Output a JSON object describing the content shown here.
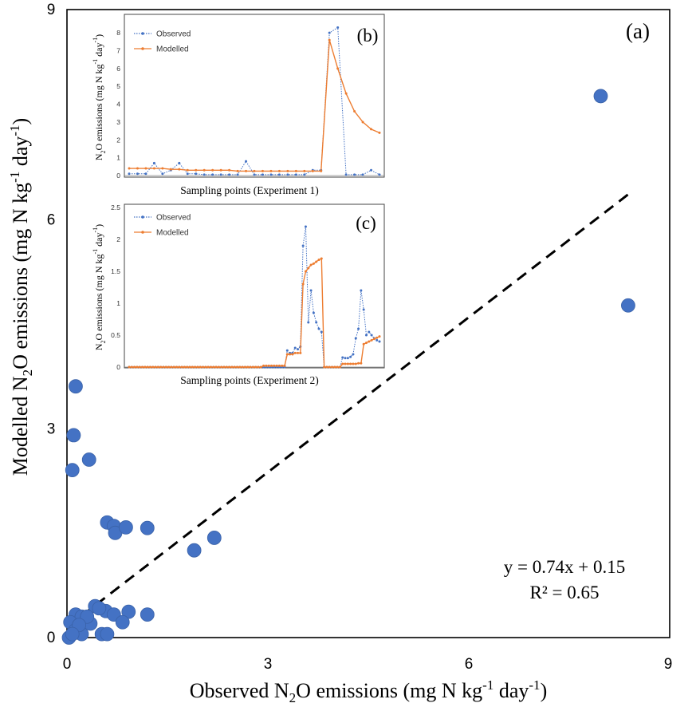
{
  "chart_data": [
    {
      "panel": "a",
      "type": "scatter",
      "panel_label": "(a)",
      "xlabel": "Observed N2O emissions (mg N kg-1 day-1)",
      "ylabel": "Modelled N2O emissions (mg N kg-1 day-1)",
      "xlim": [
        0,
        9
      ],
      "ylim": [
        0,
        9
      ],
      "xticks": [
        0,
        3,
        6,
        9
      ],
      "yticks": [
        0,
        3,
        6,
        9
      ],
      "points": [
        [
          0.13,
          3.6
        ],
        [
          0.1,
          2.9
        ],
        [
          0.08,
          2.4
        ],
        [
          0.33,
          2.55
        ],
        [
          0.6,
          1.65
        ],
        [
          0.7,
          1.6
        ],
        [
          0.72,
          1.5
        ],
        [
          0.88,
          1.58
        ],
        [
          1.2,
          1.57
        ],
        [
          1.9,
          1.25
        ],
        [
          2.2,
          1.43
        ],
        [
          7.97,
          7.76
        ],
        [
          8.38,
          4.76
        ],
        [
          0.42,
          0.45
        ],
        [
          0.58,
          0.38
        ],
        [
          0.7,
          0.33
        ],
        [
          0.92,
          0.37
        ],
        [
          1.2,
          0.33
        ],
        [
          0.13,
          0.33
        ],
        [
          0.22,
          0.3
        ],
        [
          0.05,
          0.22
        ],
        [
          0.35,
          0.2
        ],
        [
          0.83,
          0.22
        ],
        [
          0.12,
          0.1
        ],
        [
          0.22,
          0.05
        ],
        [
          0.03,
          0.0
        ],
        [
          0.52,
          0.05
        ],
        [
          0.6,
          0.05
        ],
        [
          0.48,
          0.42
        ],
        [
          0.3,
          0.3
        ],
        [
          0.18,
          0.18
        ],
        [
          0.08,
          0.05
        ]
      ],
      "trendline": {
        "slope": 0.74,
        "intercept": 0.15,
        "x_range": [
          0,
          8.4
        ],
        "style": "dashed"
      },
      "equation": "y = 0.74x + 0.15",
      "r_squared": "R² = 0.65",
      "point_color": "#4472C4"
    },
    {
      "panel": "b",
      "type": "line",
      "panel_label": "(b)",
      "xlabel": "Sampling points (Experiment 1)",
      "ylabel": "N2O emissions (mg N kg-1 day-1)",
      "ylim": [
        0,
        8.5
      ],
      "yticks": [
        0,
        1,
        2,
        3,
        4,
        5,
        6,
        7,
        8
      ],
      "series": [
        {
          "name": "Observed",
          "color": "#4472C4",
          "style": "dotted",
          "values": [
            0.1,
            0.1,
            0.1,
            0.7,
            0.1,
            0.3,
            0.7,
            0.1,
            0.1,
            0.05,
            0.05,
            0.05,
            0.05,
            0.05,
            0.8,
            0.05,
            0.05,
            0.05,
            0.05,
            0.05,
            0.05,
            0.05,
            0.3,
            0.3,
            8.0,
            8.3,
            0.05,
            0.05,
            0.05,
            0.3,
            0.05
          ]
        },
        {
          "name": "Modelled",
          "color": "#ED7D31",
          "style": "solid",
          "values": [
            0.4,
            0.4,
            0.4,
            0.4,
            0.4,
            0.35,
            0.35,
            0.3,
            0.3,
            0.3,
            0.3,
            0.3,
            0.3,
            0.25,
            0.25,
            0.25,
            0.25,
            0.25,
            0.25,
            0.25,
            0.25,
            0.25,
            0.25,
            0.25,
            7.6,
            6.0,
            4.6,
            3.6,
            3.0,
            2.6,
            2.4
          ]
        }
      ],
      "legend": "top-left"
    },
    {
      "panel": "c",
      "type": "line",
      "panel_label": "(c)",
      "xlabel": "Sampling points (Experiment 2)",
      "ylabel": "N2O emissions (mg N kg-1 day-1)",
      "ylim": [
        0,
        2.5
      ],
      "yticks": [
        "0",
        "0.5",
        "1",
        "1.5",
        "2",
        "2.5"
      ],
      "series": [
        {
          "name": "Observed",
          "color": "#4472C4",
          "style": "dotted",
          "values": [
            0,
            0,
            0,
            0,
            0,
            0,
            0,
            0,
            0,
            0,
            0,
            0,
            0,
            0,
            0,
            0,
            0,
            0,
            0,
            0,
            0,
            0,
            0,
            0,
            0,
            0,
            0,
            0,
            0,
            0,
            0,
            0,
            0,
            0,
            0,
            0,
            0,
            0,
            0,
            0,
            0,
            0,
            0,
            0,
            0,
            0,
            0,
            0,
            0,
            0,
            0,
            0,
            0,
            0,
            0,
            0,
            0,
            0,
            0,
            0,
            0.26,
            0.22,
            0.22,
            0.3,
            0.28,
            0.32,
            1.9,
            2.2,
            0.7,
            1.2,
            0.85,
            0.7,
            0.6,
            0.55,
            0,
            0,
            0,
            0,
            0,
            0,
            0,
            0.15,
            0.14,
            0.14,
            0.16,
            0.2,
            0.45,
            0.6,
            1.2,
            0.9,
            0.5,
            0.55,
            0.5,
            0.45,
            0.42,
            0.4
          ]
        },
        {
          "name": "Modelled",
          "color": "#ED7D31",
          "style": "solid",
          "values": [
            0,
            0,
            0,
            0,
            0,
            0,
            0,
            0,
            0,
            0,
            0,
            0,
            0,
            0,
            0,
            0,
            0,
            0,
            0,
            0,
            0,
            0,
            0,
            0,
            0,
            0,
            0,
            0,
            0,
            0,
            0,
            0,
            0,
            0,
            0,
            0,
            0,
            0,
            0,
            0,
            0,
            0,
            0,
            0,
            0,
            0,
            0,
            0,
            0,
            0,
            0,
            0.02,
            0.02,
            0.02,
            0.02,
            0.02,
            0.02,
            0.02,
            0.02,
            0.02,
            0.2,
            0.2,
            0.2,
            0.22,
            0.22,
            0.22,
            1.3,
            1.5,
            1.55,
            1.6,
            1.62,
            1.65,
            1.68,
            1.7,
            0,
            0,
            0,
            0,
            0,
            0,
            0,
            0.05,
            0.05,
            0.05,
            0.05,
            0.05,
            0.05,
            0.06,
            0.06,
            0.36,
            0.38,
            0.4,
            0.42,
            0.44,
            0.46,
            0.48
          ]
        }
      ],
      "legend": "top-left"
    }
  ]
}
